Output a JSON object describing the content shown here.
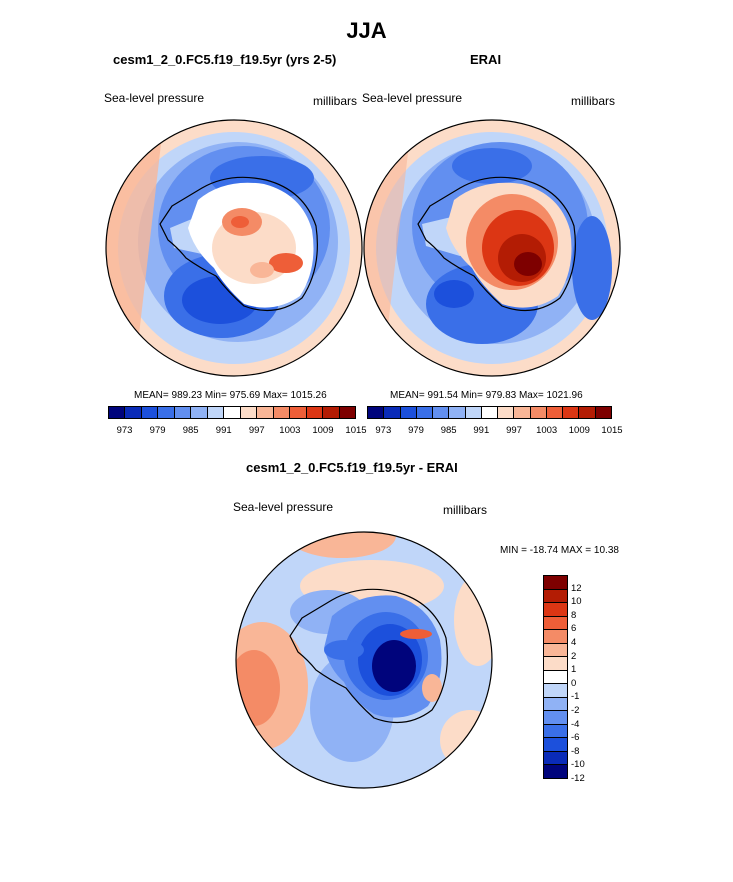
{
  "main_title": "JJA",
  "panels": [
    {
      "title": "cesm1_2_0.FC5.f19_f19.5yr (yrs 2-5)",
      "field": "Sea-level pressure",
      "units": "millibars",
      "stats": "MEAN= 989.23  Min= 975.69  Max= 1015.26"
    },
    {
      "title": "ERAI",
      "field": "Sea-level pressure",
      "units": "millibars",
      "stats": "MEAN= 991.54  Min= 979.83  Max= 1021.96"
    },
    {
      "title": "cesm1_2_0.FC5.f19_f19.5yr - ERAI",
      "field": "Sea-level pressure",
      "units": "millibars",
      "stats": "MIN = -18.74 MAX =  10.38"
    }
  ],
  "chart_data": [
    {
      "type": "heatmap",
      "projection": "south-polar stereographic",
      "title": "cesm1_2_0.FC5.f19_f19.5yr (yrs 2-5)",
      "variable": "Sea-level pressure",
      "units": "millibars",
      "mean": 989.23,
      "min": 975.69,
      "max": 1015.26,
      "colorbar_tick_labels": [
        "973",
        "979",
        "985",
        "991",
        "997",
        "1003",
        "1009",
        "1015"
      ]
    },
    {
      "type": "heatmap",
      "projection": "south-polar stereographic",
      "title": "ERAI",
      "variable": "Sea-level pressure",
      "units": "millibars",
      "mean": 991.54,
      "min": 979.83,
      "max": 1021.96,
      "colorbar_tick_labels": [
        "973",
        "979",
        "985",
        "991",
        "997",
        "1003",
        "1009",
        "1015"
      ]
    },
    {
      "type": "heatmap",
      "projection": "south-polar stereographic",
      "title": "cesm1_2_0.FC5.f19_f19.5yr - ERAI",
      "variable": "Sea-level pressure",
      "units": "millibars",
      "min": -18.74,
      "max": 10.38,
      "colorbar_tick_labels": [
        "12",
        "10",
        "8",
        "6",
        "4",
        "2",
        "1",
        "0",
        "-1",
        "-2",
        "-4",
        "-6",
        "-8",
        "-10",
        "-12"
      ]
    }
  ],
  "colors": {
    "abs_scale": [
      "#00047c",
      "#0a2bb8",
      "#1c50dc",
      "#3a6fe8",
      "#628ff0",
      "#90b2f5",
      "#c0d6f9",
      "#ffffff",
      "#fcdcc8",
      "#f9b697",
      "#f48b66",
      "#ee5e38",
      "#dc3614",
      "#b31c04",
      "#7e0000"
    ],
    "diff_scale": [
      "#7e0000",
      "#b31c04",
      "#dc3614",
      "#ee5e38",
      "#f48b66",
      "#f9b697",
      "#fcdcc8",
      "#ffffff",
      "#c0d6f9",
      "#90b2f5",
      "#628ff0",
      "#3a6fe8",
      "#1c50dc",
      "#0a2bb8",
      "#00047c"
    ]
  }
}
